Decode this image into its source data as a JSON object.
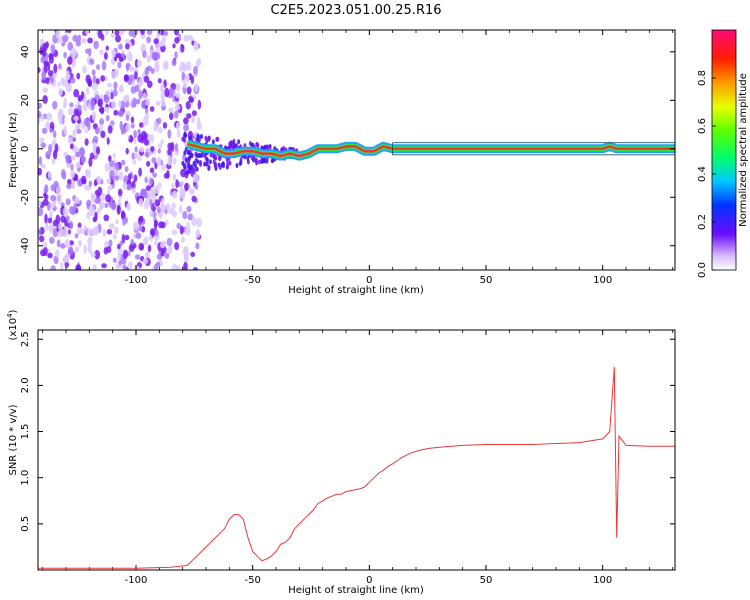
{
  "title": "C2E5.2023.051.00.25.R16",
  "colors": {
    "snr_line": "#e8383a",
    "ridge_core": "#e8383a",
    "ridge_halo": "#39e639",
    "ridge_edge": "#1fa0ff",
    "noise": "#7a1bf0"
  },
  "colorbar": {
    "label": "Normalized spectral amplitude",
    "ticks": [
      "0.0",
      "0.2",
      "0.4",
      "0.6",
      "0.8"
    ],
    "tick_values": [
      0.0,
      0.2,
      0.4,
      0.6,
      0.8
    ],
    "range": [
      0,
      1
    ]
  },
  "chart_data": [
    {
      "type": "heatmap",
      "xlabel": "Height of straight line (km)",
      "ylabel": "Frequency (Hz)",
      "xlim": [
        -142,
        131
      ],
      "ylim": [
        -50,
        49
      ],
      "xticks": [
        -100,
        -50,
        0,
        50,
        100
      ],
      "xtick_labels": [
        "-100",
        "-50",
        "0",
        "50",
        "100"
      ],
      "yticks": [
        -40,
        -20,
        0,
        20,
        40
      ],
      "ytick_labels": [
        "-40",
        "-20",
        "0",
        "20",
        "40"
      ],
      "noise_region": [
        -142,
        -78
      ],
      "ridge": {
        "x": [
          -78,
          -74,
          -70,
          -66,
          -62,
          -58,
          -54,
          -50,
          -46,
          -42,
          -38,
          -34,
          -30,
          -26,
          -22,
          -18,
          -14,
          -10,
          -6,
          -2,
          2,
          6,
          10,
          20,
          40,
          60,
          80,
          100,
          103,
          106,
          120,
          131
        ],
        "y": [
          2,
          1,
          0,
          0,
          -2,
          -2,
          -1,
          -1,
          -2,
          -2,
          -3,
          -2,
          -3,
          -2,
          0,
          0,
          0,
          1,
          1,
          -1,
          -1,
          1,
          0,
          0,
          0,
          0,
          0,
          0,
          1,
          0,
          0,
          0
        ],
        "amplitude": [
          0.25,
          0.3,
          0.3,
          0.35,
          0.4,
          0.4,
          0.45,
          0.5,
          0.55,
          0.6,
          0.6,
          0.65,
          0.7,
          0.75,
          0.8,
          0.85,
          0.9,
          0.9,
          0.95,
          0.95,
          0.95,
          0.95,
          0.95,
          0.95,
          0.95,
          0.95,
          0.95,
          0.95,
          0.5,
          0.95,
          0.95,
          0.95
        ]
      }
    },
    {
      "type": "line",
      "xlabel": "Height of straight line (km)",
      "ylabel": "SNR (10 * v/v)",
      "yscale_label": "(x10",
      "yscale_exp": "4",
      "yscale_close": ")",
      "xlim": [
        -142,
        131
      ],
      "ylim": [
        0,
        2.6
      ],
      "xticks": [
        -100,
        -50,
        0,
        50,
        100
      ],
      "xtick_labels": [
        "-100",
        "-50",
        "0",
        "50",
        "100"
      ],
      "yticks": [
        0.5,
        1.0,
        1.5,
        2.0,
        2.5
      ],
      "ytick_labels": [
        "0.5",
        "1.0",
        "1.5",
        "2.0",
        "2.5"
      ],
      "series": [
        {
          "x": [
            -142,
            -120,
            -100,
            -85,
            -78,
            -74,
            -70,
            -66,
            -62,
            -60,
            -58,
            -56,
            -54,
            -52,
            -50,
            -48,
            -46,
            -44,
            -42,
            -40,
            -38,
            -36,
            -34,
            -32,
            -30,
            -28,
            -26,
            -24,
            -22,
            -20,
            -18,
            -16,
            -14,
            -12,
            -10,
            -8,
            -6,
            -4,
            -2,
            0,
            2,
            4,
            6,
            8,
            10,
            14,
            18,
            22,
            26,
            30,
            40,
            50,
            60,
            70,
            80,
            90,
            95,
            100,
            103,
            105,
            106,
            107,
            110,
            120,
            131
          ],
          "y": [
            0.02,
            0.02,
            0.02,
            0.03,
            0.05,
            0.15,
            0.25,
            0.35,
            0.45,
            0.55,
            0.6,
            0.6,
            0.55,
            0.35,
            0.2,
            0.15,
            0.1,
            0.12,
            0.15,
            0.2,
            0.28,
            0.3,
            0.35,
            0.45,
            0.5,
            0.55,
            0.6,
            0.65,
            0.72,
            0.75,
            0.78,
            0.8,
            0.82,
            0.82,
            0.85,
            0.86,
            0.87,
            0.88,
            0.9,
            0.95,
            1.0,
            1.05,
            1.08,
            1.12,
            1.15,
            1.22,
            1.27,
            1.3,
            1.32,
            1.33,
            1.35,
            1.36,
            1.36,
            1.36,
            1.37,
            1.38,
            1.4,
            1.42,
            1.5,
            2.2,
            0.35,
            1.45,
            1.35,
            1.34,
            1.34
          ]
        }
      ]
    }
  ]
}
